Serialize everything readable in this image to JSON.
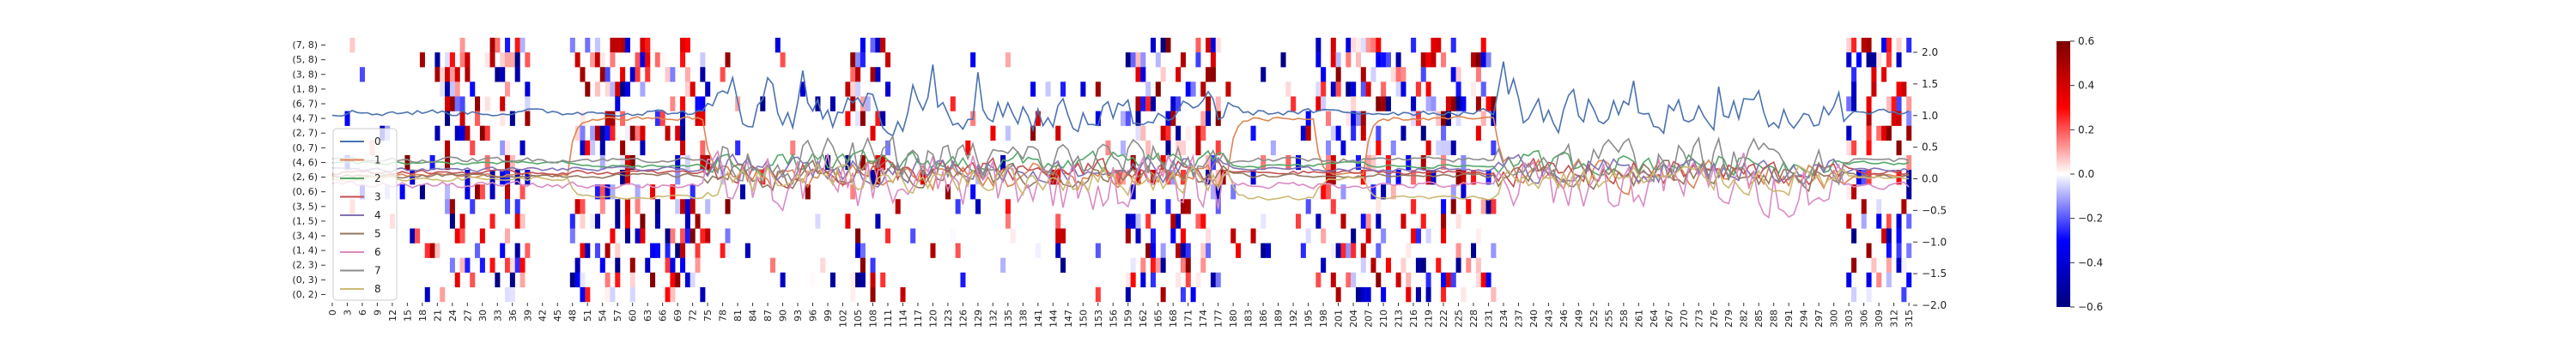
{
  "chart_data": [
    {
      "type": "heatmap",
      "rows": [
        "(7, 8)",
        "(5, 8)",
        "(3, 8)",
        "(1, 8)",
        "(6, 7)",
        "(4, 7)",
        "(2, 7)",
        "(0, 7)",
        "(4, 6)",
        "(2, 6)",
        "(0, 6)",
        "(3, 5)",
        "(1, 5)",
        "(3, 4)",
        "(1, 4)",
        "(2, 3)",
        "(0, 3)",
        "(0, 2)"
      ],
      "x_range": [
        0,
        316
      ],
      "x_tick_step": 3,
      "color_range": [
        -0.6,
        0.6
      ],
      "colorbar_ticks": [
        "0.6",
        "0.4",
        "0.2",
        "0.0",
        "−0.2",
        "−0.4",
        "−0.6"
      ],
      "colormap": [
        "#00007f",
        "#0000ff",
        "#ffffff",
        "#ff0000",
        "#7f0000"
      ],
      "band_sparse": [
        [
          0,
          21
        ],
        [
          73,
          103
        ],
        [
          112,
          158
        ],
        [
          178,
          197
        ]
      ],
      "band_active": [
        [
          21,
          40
        ],
        [
          48,
          75
        ],
        [
          103,
          112
        ],
        [
          158,
          178
        ],
        [
          197,
          233
        ],
        [
          303,
          316
        ]
      ],
      "band_empty": [
        [
          233,
          303
        ]
      ]
    },
    {
      "type": "line",
      "x_range": [
        0,
        316
      ],
      "ylim": [
        -2.0,
        2.0
      ],
      "y_ticks": [
        "2.0",
        "1.5",
        "1.0",
        "0.5",
        "0.0",
        "−0.5",
        "−1.0",
        "−1.5",
        "−2.0"
      ],
      "legend_position": "center-left",
      "series": [
        {
          "name": "0",
          "color": "#4c72b0",
          "base": 1.05,
          "noise": 0.08,
          "hi_noise": 0.45,
          "shift": 0.0
        },
        {
          "name": "1",
          "color": "#dd8452",
          "base": 0.05,
          "noise": 0.05,
          "hi_noise": 0.35,
          "shift": 0.9
        },
        {
          "name": "2",
          "color": "#55a868",
          "base": 0.25,
          "noise": 0.04,
          "hi_noise": 0.25,
          "shift": -0.05
        },
        {
          "name": "3",
          "color": "#c44e52",
          "base": 0.1,
          "noise": 0.05,
          "hi_noise": 0.3,
          "shift": 0.0
        },
        {
          "name": "4",
          "color": "#8172b3",
          "base": 0.15,
          "noise": 0.05,
          "hi_noise": 0.3,
          "shift": 0.0
        },
        {
          "name": "5",
          "color": "#937860",
          "base": 0.05,
          "noise": 0.05,
          "hi_noise": 0.3,
          "shift": 0.0
        },
        {
          "name": "6",
          "color": "#da8bc3",
          "base": -0.1,
          "noise": 0.08,
          "hi_noise": 0.7,
          "shift": 0.0
        },
        {
          "name": "7",
          "color": "#8c8c8c",
          "base": 0.3,
          "noise": 0.06,
          "hi_noise": 0.5,
          "shift": 0.0
        },
        {
          "name": "8",
          "color": "#ccb974",
          "base": 0.0,
          "noise": 0.05,
          "hi_noise": 0.35,
          "shift": -0.3
        }
      ],
      "shift_segments": [
        [
          48,
          75
        ],
        [
          180,
          197
        ],
        [
          207,
          233
        ]
      ]
    }
  ]
}
